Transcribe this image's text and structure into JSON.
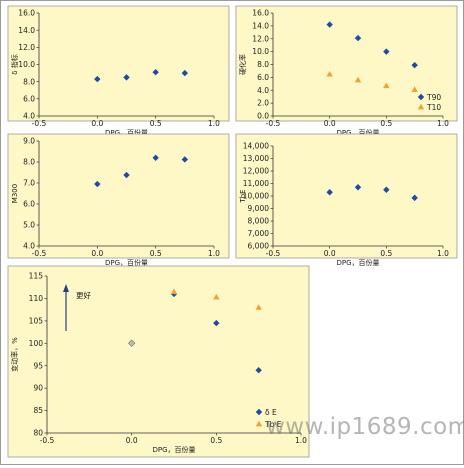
{
  "watermark": "www.ip1689.com",
  "colors": {
    "plot_bg": "#fdf8c6",
    "blue": "#1f4ba8",
    "orange": "#f4a12f",
    "gray": "#bdbdbd"
  },
  "chart_data": [
    {
      "id": "p1",
      "type": "scatter",
      "ylabel": "δ 指标",
      "xlabel": "DPG，百份量",
      "xlim": [
        -0.5,
        1.0
      ],
      "ylim": [
        4.0,
        16.0
      ],
      "xticks": [
        "-0.5",
        "0.0",
        "0.5",
        "1.0"
      ],
      "yticks": [
        "4.0",
        "6.0",
        "8.0",
        "10.0",
        "12.0",
        "14.0",
        "16.0"
      ],
      "series": [
        {
          "marker": "diamond",
          "color": "#1f4ba8",
          "x": [
            0.0,
            0.25,
            0.5,
            0.75
          ],
          "y": [
            8.3,
            8.5,
            9.1,
            9.0
          ]
        }
      ]
    },
    {
      "id": "p2",
      "type": "scatter",
      "ylabel": "硬化率",
      "xlabel": "DPG，百份量",
      "xlim": [
        -0.5,
        1.0
      ],
      "ylim": [
        0.0,
        16.0
      ],
      "xticks": [
        "-0.5",
        "0.0",
        "0.5",
        "1.0"
      ],
      "yticks": [
        "0.0",
        "2.0",
        "4.0",
        "6.0",
        "8.0",
        "10.0",
        "12.0",
        "14.0",
        "16.0"
      ],
      "legend_position": "bottom-right",
      "series": [
        {
          "name": "T90",
          "marker": "diamond",
          "color": "#1f4ba8",
          "x": [
            0.0,
            0.25,
            0.5,
            0.75
          ],
          "y": [
            14.2,
            12.1,
            10.0,
            7.9
          ]
        },
        {
          "name": "T10",
          "marker": "triangle",
          "color": "#f4a12f",
          "x": [
            0.0,
            0.25,
            0.5,
            0.75
          ],
          "y": [
            6.5,
            5.6,
            4.7,
            4.1
          ]
        }
      ]
    },
    {
      "id": "p3",
      "type": "scatter",
      "ylabel": "M300",
      "xlabel": "DPG，百份量",
      "xlim": [
        -0.5,
        1.0
      ],
      "ylim": [
        4.0,
        9.0
      ],
      "xticks": [
        "-0.5",
        "0.0",
        "0.5",
        "1.0"
      ],
      "yticks": [
        "4.0",
        "5.0",
        "6.0",
        "7.0",
        "8.0",
        "9.0"
      ],
      "series": [
        {
          "marker": "diamond",
          "color": "#1f4ba8",
          "x": [
            0.0,
            0.25,
            0.5,
            0.75
          ],
          "y": [
            6.95,
            7.38,
            8.2,
            8.12
          ]
        }
      ]
    },
    {
      "id": "p4",
      "type": "scatter",
      "ylabel": "TbE",
      "xlabel": "DPG，百份量",
      "xlim": [
        -0.5,
        1.0
      ],
      "ylim": [
        6000,
        14000
      ],
      "xticks": [
        "-0.5",
        "0.0",
        "0.5",
        "1.0"
      ],
      "yticks": [
        "6,000",
        "7,000",
        "8,000",
        "9,000",
        "10,000",
        "11,000",
        "12,000",
        "13,000",
        "14,000"
      ],
      "series": [
        {
          "marker": "diamond",
          "color": "#1f4ba8",
          "x": [
            0.0,
            0.25,
            0.5,
            0.75
          ],
          "y": [
            10300,
            10700,
            10500,
            9850
          ]
        }
      ]
    },
    {
      "id": "p5",
      "type": "scatter",
      "ylabel": "变动率，%",
      "xlabel": "DPG，百份量",
      "xlim": [
        -0.5,
        1.0
      ],
      "ylim": [
        80,
        115
      ],
      "xticks": [
        "-0.5",
        "0.0",
        "0.5",
        "1.0"
      ],
      "yticks": [
        "80",
        "85",
        "90",
        "95",
        "100",
        "105",
        "110",
        "115"
      ],
      "legend_position": "bottom-right",
      "annotation": "更好",
      "series": [
        {
          "name": "δ E",
          "marker": "diamond",
          "color": "#1f4ba8",
          "x": [
            0.25,
            0.5,
            0.75
          ],
          "y": [
            111.0,
            104.5,
            94.0
          ]
        },
        {
          "name": "Tb·E",
          "marker": "triangle",
          "color": "#f4a12f",
          "x": [
            0.25,
            0.5,
            0.75
          ],
          "y": [
            111.5,
            110.3,
            108.0
          ]
        }
      ],
      "baseline_point": {
        "marker": "diamond",
        "color": "#bdbdbd",
        "x": 0.0,
        "y": 100.0
      }
    }
  ]
}
